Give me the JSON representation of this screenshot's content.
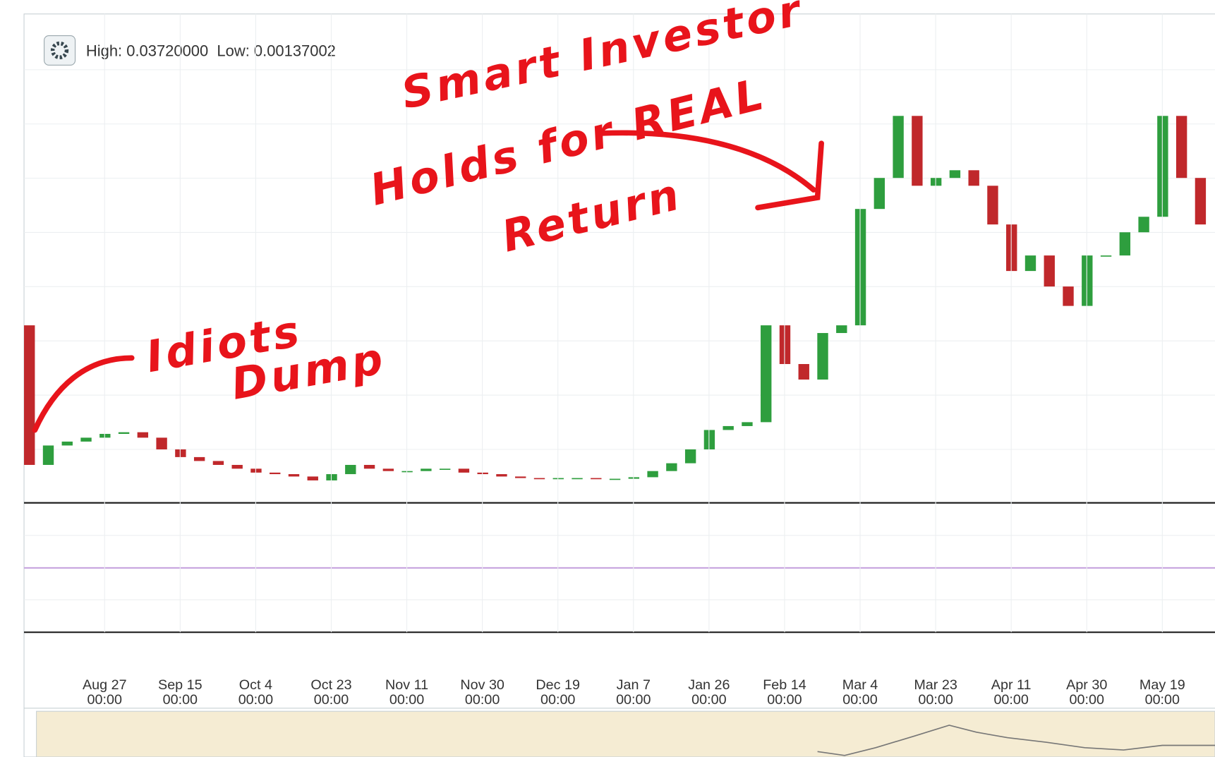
{
  "chart_data": {
    "type": "candlestick",
    "header": "High: 0.03720000  Low: 0.00137002",
    "annotations": [
      "Smart Investor",
      "Holds for REAL",
      "Return",
      "Idiots",
      "Dump"
    ],
    "x_labels": [
      {
        "date": "Aug 27",
        "time": "00:00"
      },
      {
        "date": "Sep 15",
        "time": "00:00"
      },
      {
        "date": "Oct 4",
        "time": "00:00"
      },
      {
        "date": "Oct 23",
        "time": "00:00"
      },
      {
        "date": "Nov 11",
        "time": "00:00"
      },
      {
        "date": "Nov 30",
        "time": "00:00"
      },
      {
        "date": "Dec 19",
        "time": "00:00"
      },
      {
        "date": "Jan 7",
        "time": "00:00"
      },
      {
        "date": "Jan 26",
        "time": "00:00"
      },
      {
        "date": "Feb 14",
        "time": "00:00"
      },
      {
        "date": "Mar 4",
        "time": "00:00"
      },
      {
        "date": "Mar 23",
        "time": "00:00"
      },
      {
        "date": "Apr 11",
        "time": "00:00"
      },
      {
        "date": "Apr 30",
        "time": "00:00"
      },
      {
        "date": "May 19",
        "time": "00:00"
      }
    ],
    "ylim": [
      0,
      0.0411
    ],
    "up_color": "#2e9e3e",
    "down_color": "#c0282b",
    "open": [
      0.01493,
      0.00314,
      0.00478,
      0.00511,
      0.00544,
      0.00576,
      0.0059,
      0.00544,
      0.00445,
      0.0038,
      0.00347,
      0.00314,
      0.00282,
      0.00249,
      0.00236,
      0.00216,
      0.00183,
      0.00236,
      0.00314,
      0.00282,
      0.00262,
      0.00262,
      0.00282,
      0.00282,
      0.00249,
      0.00236,
      0.00216,
      0.00203,
      0.00197,
      0.00203,
      0.00203,
      0.00197,
      0.00197,
      0.0021,
      0.00262,
      0.00328,
      0.00445,
      0.00609,
      0.00642,
      0.00675,
      0.01493,
      0.01166,
      0.01035,
      0.01428,
      0.01493,
      0.02476,
      0.02738,
      0.03262,
      0.02672,
      0.02738,
      0.02803,
      0.02672,
      0.02345,
      0.01952,
      0.02083,
      0.01821,
      0.01657,
      0.02083,
      0.02083,
      0.02279,
      0.0241,
      0.03262,
      0.02738
    ],
    "close": [
      0.00314,
      0.00478,
      0.00511,
      0.00544,
      0.00576,
      0.0059,
      0.00544,
      0.00445,
      0.0038,
      0.00347,
      0.00314,
      0.00282,
      0.00249,
      0.00236,
      0.00216,
      0.00183,
      0.00236,
      0.00314,
      0.00282,
      0.00262,
      0.00262,
      0.00282,
      0.00282,
      0.00249,
      0.00236,
      0.00216,
      0.00203,
      0.00197,
      0.00203,
      0.00203,
      0.00197,
      0.00197,
      0.0021,
      0.00262,
      0.00328,
      0.00445,
      0.00609,
      0.00642,
      0.00675,
      0.01493,
      0.01166,
      0.01035,
      0.01428,
      0.01493,
      0.02476,
      0.02738,
      0.03262,
      0.02672,
      0.02738,
      0.02803,
      0.02672,
      0.02345,
      0.01952,
      0.02083,
      0.01821,
      0.01657,
      0.02083,
      0.02083,
      0.02279,
      0.0241,
      0.03262,
      0.02738,
      0.02345
    ]
  }
}
